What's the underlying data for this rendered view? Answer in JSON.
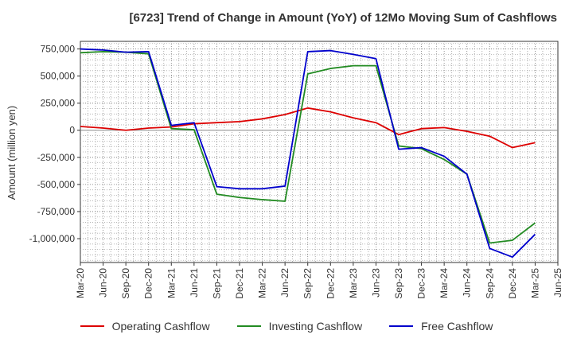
{
  "chart_data": {
    "type": "line",
    "title": "[6723]  Trend of Change in Amount (YoY) of 12Mo Moving Sum of Cashflows",
    "ylabel": "Amount (million yen)",
    "xlabel": "",
    "ylim": [
      -1220000,
      820000
    ],
    "yticks": [
      750000,
      500000,
      250000,
      0,
      -250000,
      -500000,
      -750000,
      -1000000
    ],
    "ytick_labels": [
      "750,000",
      "500,000",
      "250,000",
      "0",
      "-250,000",
      "-500,000",
      "-750,000",
      "-1,000,000"
    ],
    "x": [
      "Mar-20",
      "Jun-20",
      "Sep-20",
      "Dec-20",
      "Mar-21",
      "Jun-21",
      "Sep-21",
      "Dec-21",
      "Mar-22",
      "Jun-22",
      "Sep-22",
      "Dec-22",
      "Mar-23",
      "Jun-23",
      "Sep-23",
      "Dec-23",
      "Mar-24",
      "Jun-24",
      "Sep-24",
      "Dec-24",
      "Mar-25",
      "Jun-25"
    ],
    "series": [
      {
        "name": "Operating Cashflow",
        "color": "#dd0000",
        "values": [
          35000,
          20000,
          0,
          20000,
          30000,
          60000,
          70000,
          80000,
          105000,
          145000,
          205000,
          170000,
          115000,
          70000,
          -40000,
          15000,
          25000,
          -10000,
          -55000,
          -160000,
          -115000,
          null
        ]
      },
      {
        "name": "Investing Cashflow",
        "color": "#228b22",
        "values": [
          715000,
          725000,
          720000,
          705000,
          15000,
          5000,
          -590000,
          -620000,
          -640000,
          -655000,
          520000,
          570000,
          595000,
          595000,
          -145000,
          -170000,
          -270000,
          -405000,
          -1040000,
          -1015000,
          -855000,
          null
        ]
      },
      {
        "name": "Free Cashflow",
        "color": "#0000cc",
        "values": [
          750000,
          740000,
          720000,
          725000,
          45000,
          70000,
          -520000,
          -540000,
          -540000,
          -515000,
          725000,
          735000,
          700000,
          660000,
          -175000,
          -160000,
          -240000,
          -405000,
          -1090000,
          -1170000,
          -960000,
          null
        ]
      }
    ]
  }
}
